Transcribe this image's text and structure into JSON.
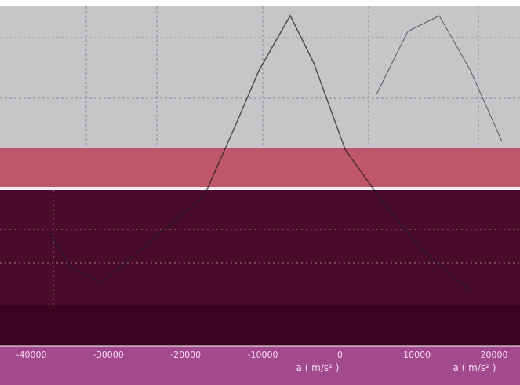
{
  "axis": {
    "tick_labels": [
      "-40000",
      "-30000",
      "-20000",
      "-10000",
      "0",
      "10000",
      "20000"
    ],
    "titles": [
      "a ( m/s² )",
      "a ( m/s² )"
    ]
  }
}
